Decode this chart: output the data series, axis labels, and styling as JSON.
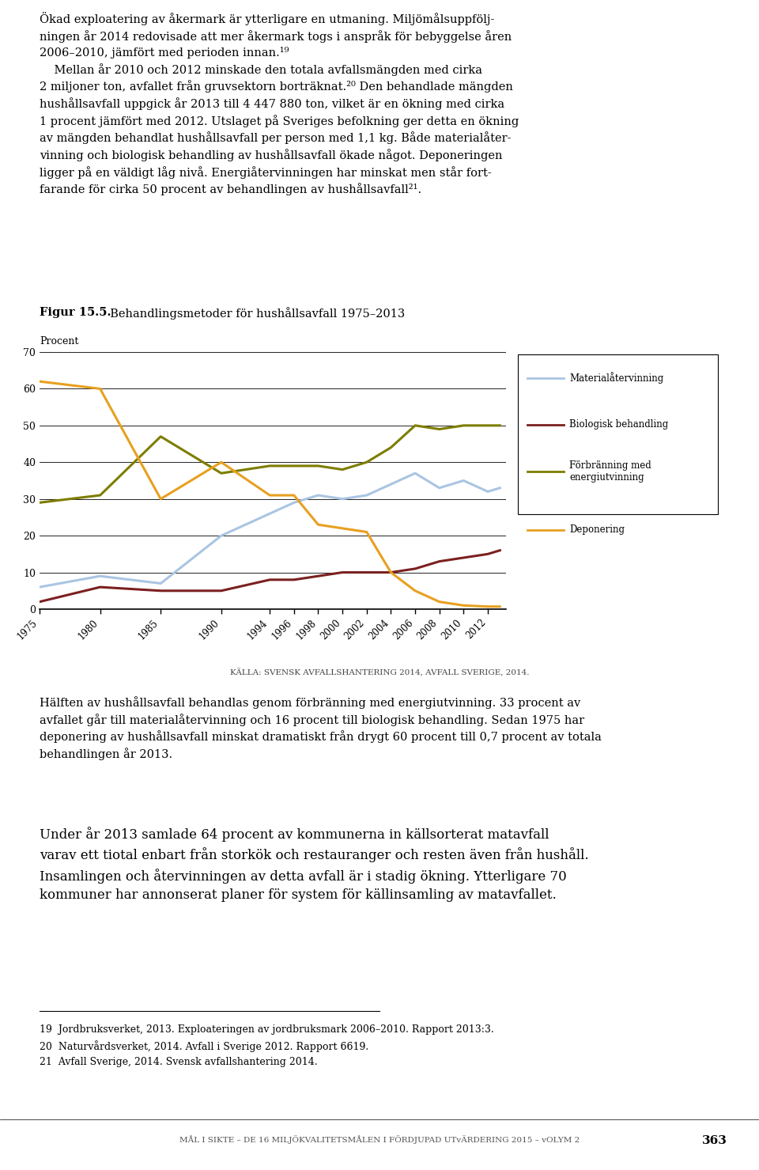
{
  "title_bold": "Figur 15.5.",
  "title_normal": "  Behandlingsmetoder för hushållsavfall 1975–2013",
  "ylabel": "Procent",
  "source": "KÄLLA: SVENSK AVFALLSHANTERING 2014, AVFALL SVERIGE, 2014.",
  "ylim": [
    0,
    70
  ],
  "yticks": [
    0,
    10,
    20,
    30,
    40,
    50,
    60,
    70
  ],
  "years": [
    1975,
    1980,
    1985,
    1990,
    1994,
    1996,
    1998,
    2000,
    2002,
    2004,
    2006,
    2008,
    2010,
    2012,
    2013
  ],
  "xtick_years": [
    1975,
    1980,
    1985,
    1990,
    1994,
    1996,
    1998,
    2000,
    2002,
    2004,
    2006,
    2008,
    2010,
    2012
  ],
  "materialatervinning": [
    6,
    9,
    7,
    20,
    26,
    29,
    31,
    30,
    31,
    34,
    37,
    33,
    35,
    32,
    33
  ],
  "biologisk_behandling": [
    2,
    6,
    5,
    5,
    8,
    8,
    9,
    10,
    10,
    10,
    11,
    13,
    14,
    15,
    16
  ],
  "forbranningmed_energiutvinning": [
    29,
    31,
    47,
    37,
    39,
    39,
    39,
    38,
    40,
    44,
    50,
    49,
    50,
    50,
    50
  ],
  "deponering": [
    62,
    60,
    30,
    40,
    31,
    31,
    23,
    22,
    21,
    10,
    5,
    2,
    1,
    0.7,
    0.7
  ],
  "color_materialatervinning": "#aac5e2",
  "color_biologisk": "#7B2020",
  "color_forbranningmed": "#7d7d00",
  "color_deponering": "#E8A020",
  "legend_labels": [
    "Materialåtervinning",
    "Biologisk behandling",
    "Förbränning med\nenergiutvinning",
    "Deponering"
  ],
  "header_line1": "Ökad exploatering av åkermark är ytterligare en utmaning. Miljömålsuppfölj-",
  "header_line2": "ningen år 2014 redovisade att mer åkermark togs i anspråk för bebyggelse åren",
  "header_line3": "2006–2010, jämfört med perioden innan.¹⁹",
  "header_indent": "    Mellan år 2010 och 2012 minskade den totala avfallsmängden med cirka",
  "header_line5": "2 miljoner ton, avfallet från gruvsektorn borträknat.²⁰ Den behandlade mängden",
  "header_line6": "hushållsavfall uppgick år 2013 till 4 447 880 ton, vilket är en ökning med cirka",
  "header_line7": "1 procent jämfört med 2012. Utslaget på Sveriges befolkning ger detta en ökning",
  "header_line8": "av mängden behandlat hushållsavfall per person med 1,1 kg. Både materialåter-",
  "header_line9": "vinning och biologisk behandling av hushållsavfall ökade något. Deponeringen",
  "header_line10": "ligger på en väldigt låg nivå. Energiåtervinningen har minskat men står fort-",
  "header_line11": "farande för cirka 50 procent av behandlingen av hushållsavfall²¹.",
  "body1_line1": "Hälften av hushållsavfall behandlas genom förbränning med energiutvinning. 33 procent av",
  "body1_line2": "avfallet går till materialåtervinning och 16 procent till biologisk behandling. Sedan 1975 har",
  "body1_line3": "deponering av hushållsavfall minskat dramatiskt från drygt 60 procent till 0,7 procent av totala",
  "body1_line4": "behandlingen år 2013.",
  "body2_line1": "Under år 2013 samlade 64 procent av kommunerna in källsorterat matavfall",
  "body2_line2": "varav ett tiotal enbart från storkök och restauranger och resten även från hushåll.",
  "body2_line3": "Insamlingen och återvinningen av detta avfall är i stadig ökning. Ytterligare 70",
  "body2_line4": "kommuner har annonserat planer för system för källinsamling av matavfallet.",
  "footnote1": "19  Jordbruksverket, 2013. Exploateringen av jordbruksmark 2006–2010. Rapport 2013:3.",
  "footnote2": "20  Naturvårdsverket, 2014. Avfall i Sverige 2012. Rapport 6619.",
  "footnote3": "21  Avfall Sverige, 2014. Svensk avfallshantering 2014.",
  "footer_page": "363",
  "footer_main": "MÅL I SIKTE – DE 16 MILJÖKVALITETSMÅLEN I FÖRDJUPAD UTvÄRDERING 2015 – vOLYM 2"
}
